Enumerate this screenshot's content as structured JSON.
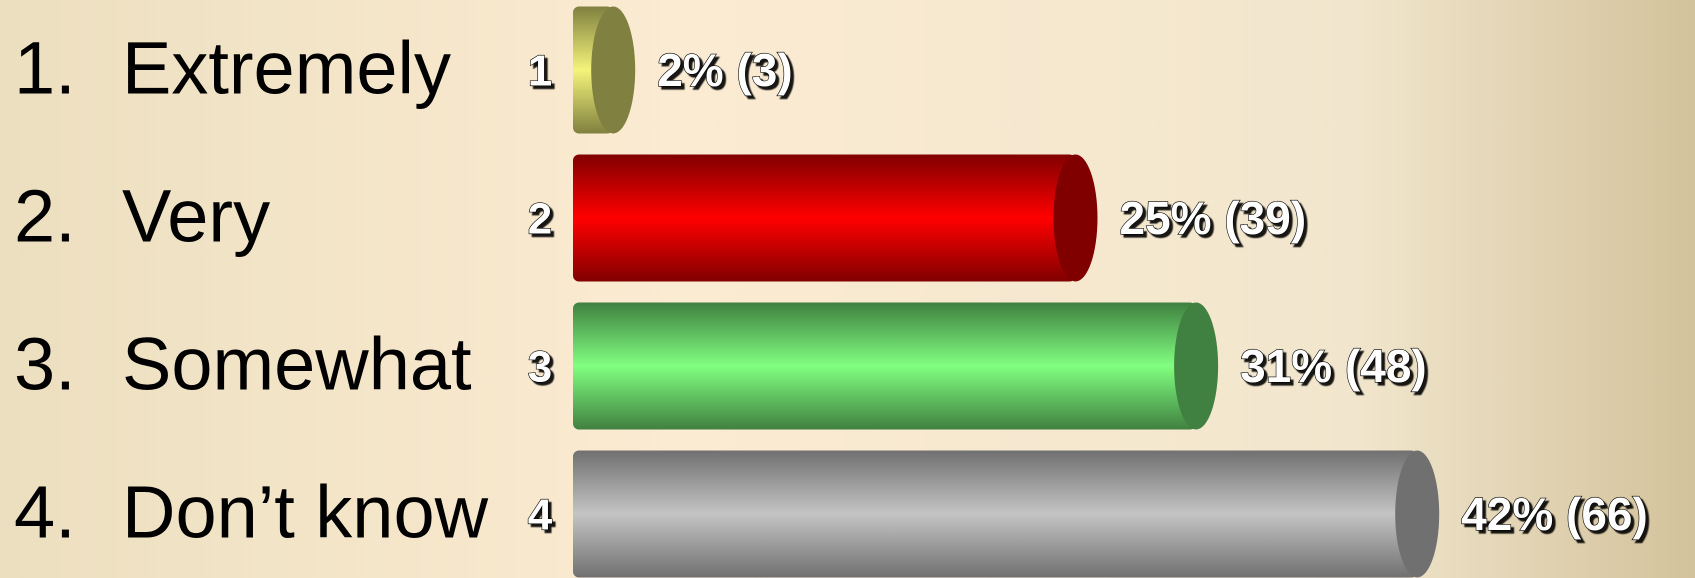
{
  "chart_data": {
    "type": "bar",
    "orientation": "horizontal",
    "options": [
      {
        "number": "1.",
        "text": "Extremely"
      },
      {
        "number": "2.",
        "text": "Very"
      },
      {
        "number": "3.",
        "text": "Somewhat"
      },
      {
        "number": "4.",
        "text": "Don’t know"
      }
    ],
    "categories": [
      "1",
      "2",
      "3",
      "4"
    ],
    "values": [
      2,
      25,
      31,
      42
    ],
    "value_labels": [
      "2% (3)",
      "25% (39)",
      "31% (48)",
      "42% (66)"
    ],
    "colors": [
      "#f4f47a",
      "#ff0000",
      "#80ff80",
      "#c4c4c4"
    ],
    "edge_colors": [
      "#808040",
      "#800000",
      "#408040",
      "#707070"
    ]
  }
}
